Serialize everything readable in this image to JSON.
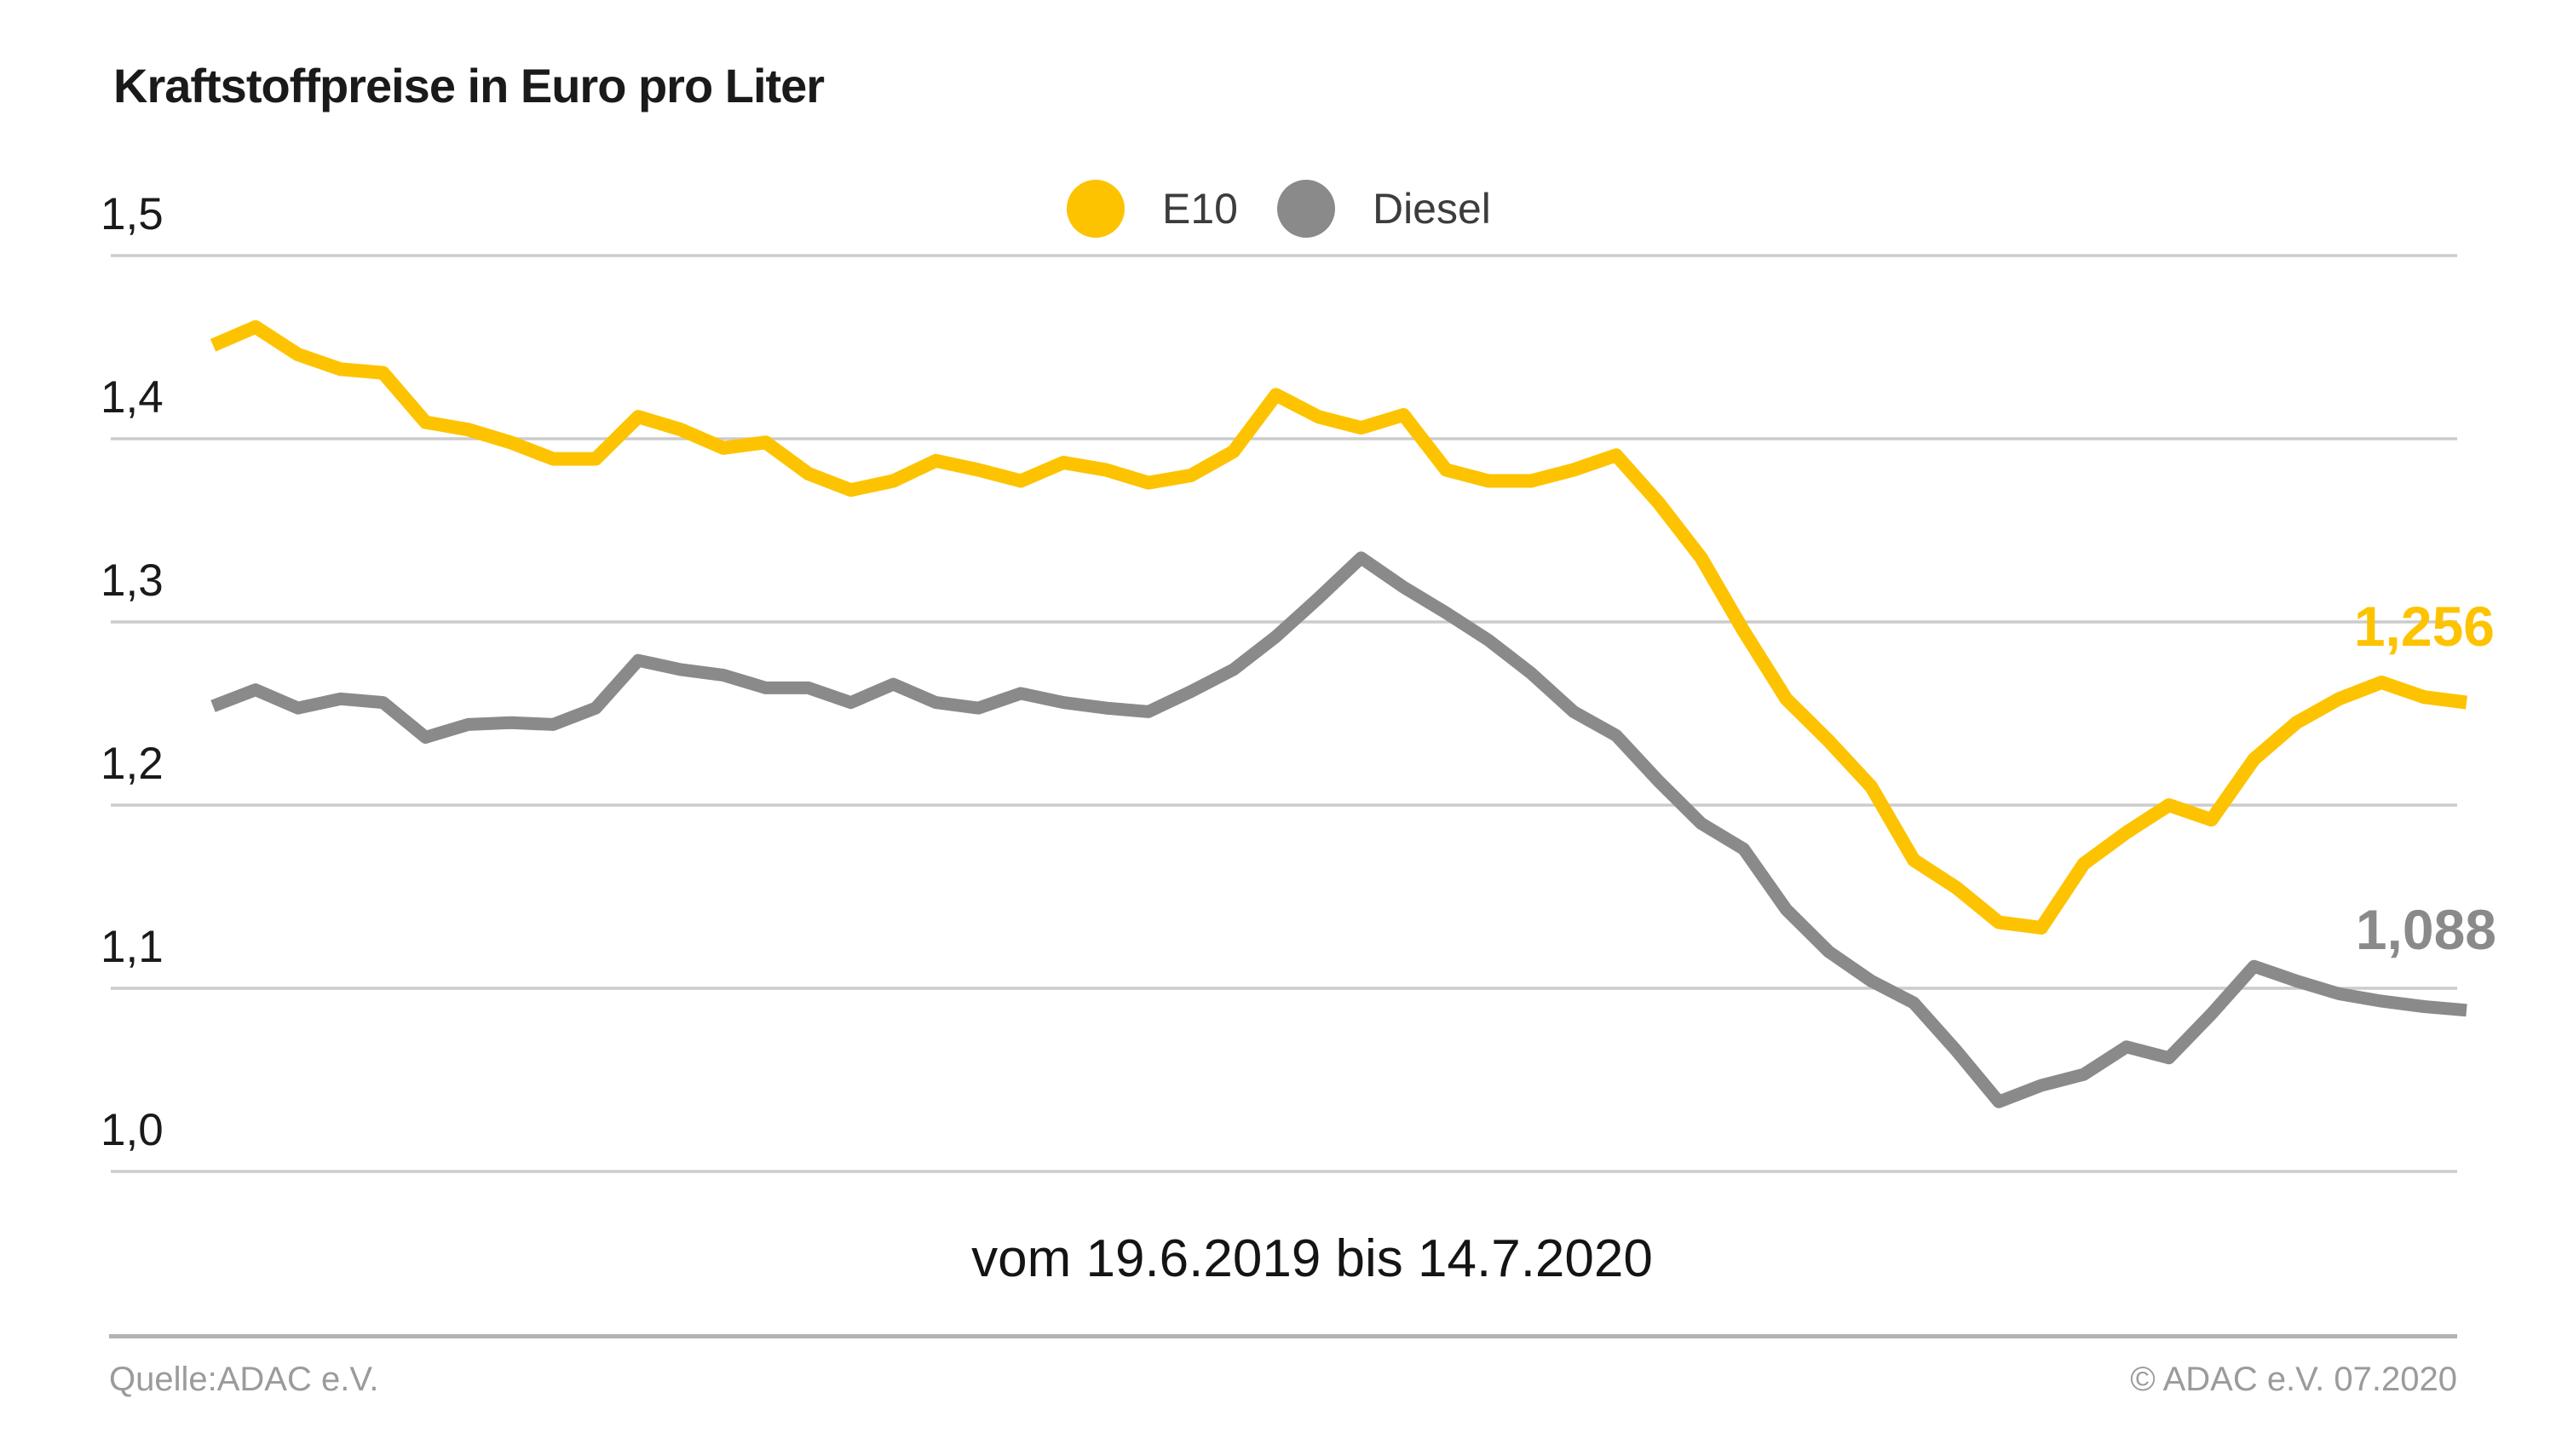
{
  "title": "Kraftstoffpreise in Euro pro Liter",
  "legend": {
    "items": [
      {
        "label": "E10",
        "color": "#FDC300",
        "icon": "circle-swatch"
      },
      {
        "label": "Diesel",
        "color": "#8A8A8A",
        "icon": "circle-swatch"
      }
    ]
  },
  "x_axis": {
    "label": "vom 19.6.2019 bis 14.7.2020"
  },
  "footer": {
    "source": "Quelle:ADAC e.V.",
    "copyright": "© ADAC e.V. 07.2020"
  },
  "colors": {
    "e10": "#FDC300",
    "diesel": "#8A8A8A",
    "gridline": "#CCCCCC",
    "separator": "#B3B3B3",
    "footer_text": "#9B9B9B"
  },
  "chart_data": {
    "type": "line",
    "title": "Kraftstoffpreise in Euro pro Liter",
    "ylabel": "Euro pro Liter",
    "x_range_label": "vom 19.6.2019 bis 14.7.2020",
    "x_start_date": "19.6.2019",
    "x_end_date": "14.7.2020",
    "x_interval": "weekly",
    "ylim": [
      1.0,
      1.5
    ],
    "grid": true,
    "legend_position": "top-center",
    "yticks": [
      {
        "value": 1.5,
        "label": "1,5"
      },
      {
        "value": 1.4,
        "label": "1,4"
      },
      {
        "value": 1.3,
        "label": "1,3"
      },
      {
        "value": 1.2,
        "label": "1,2"
      },
      {
        "value": 1.1,
        "label": "1,1"
      },
      {
        "value": 1.0,
        "label": "1,0"
      }
    ],
    "series": [
      {
        "name": "E10",
        "color": "#FDC300",
        "stroke_width": 16,
        "end_label": "1,256",
        "final_value": 1.256,
        "values": [
          1.451,
          1.461,
          1.446,
          1.438,
          1.436,
          1.409,
          1.405,
          1.398,
          1.389,
          1.389,
          1.412,
          1.405,
          1.395,
          1.398,
          1.381,
          1.372,
          1.377,
          1.388,
          1.383,
          1.377,
          1.387,
          1.383,
          1.376,
          1.38,
          1.393,
          1.424,
          1.412,
          1.406,
          1.413,
          1.383,
          1.377,
          1.377,
          1.383,
          1.391,
          1.365,
          1.335,
          1.295,
          1.258,
          1.235,
          1.21,
          1.17,
          1.155,
          1.136,
          1.133,
          1.168,
          1.185,
          1.2,
          1.192,
          1.225,
          1.245,
          1.258,
          1.267,
          1.259,
          1.256
        ]
      },
      {
        "name": "Diesel",
        "color": "#8A8A8A",
        "stroke_width": 15,
        "end_label": "1,088",
        "final_value": 1.088,
        "values": [
          1.254,
          1.263,
          1.253,
          1.258,
          1.256,
          1.237,
          1.244,
          1.245,
          1.244,
          1.253,
          1.279,
          1.274,
          1.271,
          1.264,
          1.264,
          1.256,
          1.266,
          1.256,
          1.253,
          1.261,
          1.256,
          1.253,
          1.251,
          1.262,
          1.274,
          1.292,
          1.313,
          1.335,
          1.319,
          1.305,
          1.29,
          1.272,
          1.251,
          1.238,
          1.213,
          1.19,
          1.176,
          1.143,
          1.12,
          1.104,
          1.092,
          1.066,
          1.038,
          1.047,
          1.053,
          1.068,
          1.062,
          1.086,
          1.112,
          1.104,
          1.097,
          1.093,
          1.09,
          1.088
        ]
      }
    ]
  }
}
